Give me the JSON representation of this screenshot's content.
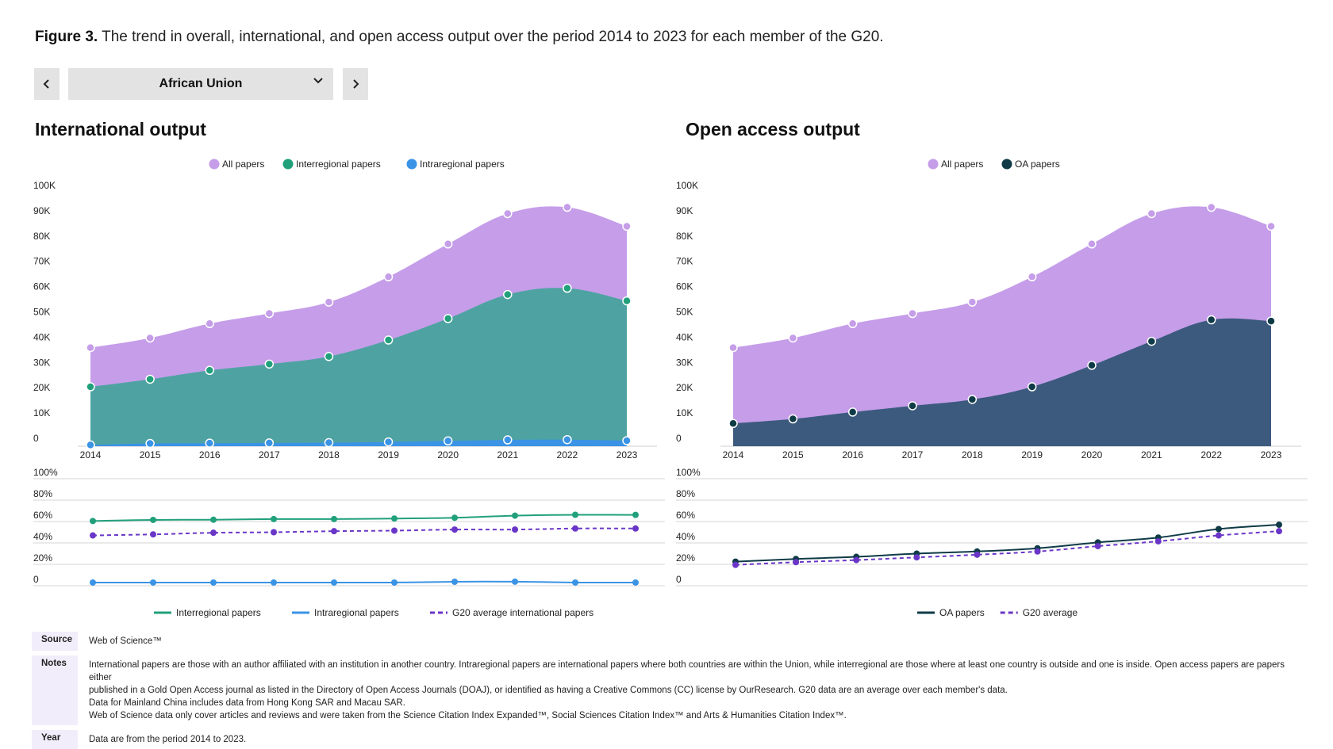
{
  "header": {
    "figure_label": "Figure 3.",
    "figure_caption": "The trend in overall, international, and open access output over the period 2014 to 2023 for each member of the G20."
  },
  "controls": {
    "selected_member": "African Union",
    "prev_icon": "chevron-left-icon",
    "next_icon": "chevron-right-icon",
    "dropdown_icon": "chevron-down-icon"
  },
  "colors": {
    "all_papers": "#c59de9",
    "interregional": "#4ea3a2",
    "interregional_dot": "#21a07c",
    "intraregional": "#3a93e5",
    "oa_area": "#3c5a7e",
    "oa_dot": "#0f3b47",
    "g20_avg": "#6a36c8"
  },
  "panels": {
    "international": {
      "title": "International output"
    },
    "open_access": {
      "title": "Open access output"
    }
  },
  "chart_data": [
    {
      "type": "area",
      "x": [
        "2014",
        "2015",
        "2016",
        "2017",
        "2018",
        "2019",
        "2020",
        "2021",
        "2022",
        "2023"
      ],
      "ylim": [
        0,
        100000
      ],
      "yticks": [
        "0",
        "10K",
        "20K",
        "30K",
        "40K",
        "50K",
        "60K",
        "70K",
        "80K",
        "90K",
        "100K"
      ],
      "legend": [
        "All papers",
        "Interregional papers",
        "Intraregional papers"
      ],
      "series": [
        {
          "name": "All papers",
          "values": [
            39000,
            42800,
            48500,
            52500,
            57000,
            67000,
            80000,
            92000,
            94500,
            87000
          ]
        },
        {
          "name": "Interregional papers",
          "values": [
            23500,
            26500,
            30000,
            32500,
            35500,
            42000,
            50500,
            60000,
            62500,
            57500
          ]
        },
        {
          "name": "Intraregional papers",
          "values": [
            500,
            1100,
            1200,
            1300,
            1400,
            1700,
            2100,
            2500,
            2600,
            2200
          ]
        }
      ]
    },
    {
      "type": "line",
      "x": [
        "2014",
        "2015",
        "2016",
        "2017",
        "2018",
        "2019",
        "2020",
        "2021",
        "2022",
        "2023"
      ],
      "ylim": [
        0,
        100
      ],
      "yticks": [
        "0",
        "20%",
        "40%",
        "60%",
        "80%",
        "100%"
      ],
      "legend": [
        "Interregional papers",
        "Intraregional papers",
        "G20 average international papers"
      ],
      "series": [
        {
          "name": "Interregional papers",
          "values": [
            60.5,
            61.5,
            61.7,
            62.3,
            62.3,
            62.8,
            63.5,
            65.5,
            66.3,
            66.2
          ]
        },
        {
          "name": "Intraregional papers",
          "values": [
            3,
            3,
            3,
            3,
            3,
            3,
            3.7,
            3.8,
            3,
            3
          ]
        },
        {
          "name": "G20 average international papers",
          "values": [
            47,
            48,
            49.5,
            50,
            51,
            51.5,
            52.5,
            52.5,
            53.5,
            53.5
          ]
        }
      ]
    },
    {
      "type": "area",
      "x": [
        "2014",
        "2015",
        "2016",
        "2017",
        "2018",
        "2019",
        "2020",
        "2021",
        "2022",
        "2023"
      ],
      "ylim": [
        0,
        100000
      ],
      "yticks": [
        "0",
        "10K",
        "20K",
        "30K",
        "40K",
        "50K",
        "60K",
        "70K",
        "80K",
        "90K",
        "100K"
      ],
      "legend": [
        "All papers",
        "OA papers"
      ],
      "series": [
        {
          "name": "All papers",
          "values": [
            39000,
            42800,
            48500,
            52500,
            57000,
            67000,
            80000,
            92000,
            94500,
            87000
          ]
        },
        {
          "name": "OA papers",
          "values": [
            9000,
            10800,
            13500,
            16000,
            18500,
            23500,
            32000,
            41500,
            50000,
            49500
          ]
        }
      ]
    },
    {
      "type": "line",
      "x": [
        "2014",
        "2015",
        "2016",
        "2017",
        "2018",
        "2019",
        "2020",
        "2021",
        "2022",
        "2023"
      ],
      "ylim": [
        0,
        100
      ],
      "yticks": [
        "0",
        "20%",
        "40%",
        "60%",
        "80%",
        "100%"
      ],
      "legend": [
        "OA papers",
        "G20 average"
      ],
      "series": [
        {
          "name": "OA papers",
          "values": [
            22.5,
            25,
            27,
            30,
            32,
            35,
            40.5,
            45,
            53,
            57
          ]
        },
        {
          "name": "G20 average",
          "values": [
            19.5,
            22,
            24,
            26.5,
            29,
            32,
            37,
            41.5,
            47,
            51
          ]
        }
      ]
    }
  ],
  "notes": {
    "source_label": "Source",
    "source_text": "Web of Science™",
    "notes_label": "Notes",
    "notes_line1": "International papers are those with an author affiliated with an institution in another country. Intraregional papers are international papers where both countries are within the Union, while interregional are those where at least one country is outside and one is inside. Open access papers are papers either",
    "notes_line2": "published in a Gold Open Access journal as listed in the Directory of Open Access Journals (DOAJ), or identified as having a Creative Commons (CC) license by OurResearch. G20 data are an average over each member's data.",
    "notes_line3": "Data for Mainland China includes data from Hong Kong SAR and Macau SAR.",
    "notes_line4": "Web of Science data only cover articles and reviews and were taken from the Science Citation Index Expanded™, Social Sciences Citation Index™ and Arts & Humanities Citation Index™.",
    "year_label": "Year",
    "year_text": "Data are from the period 2014 to 2023."
  }
}
